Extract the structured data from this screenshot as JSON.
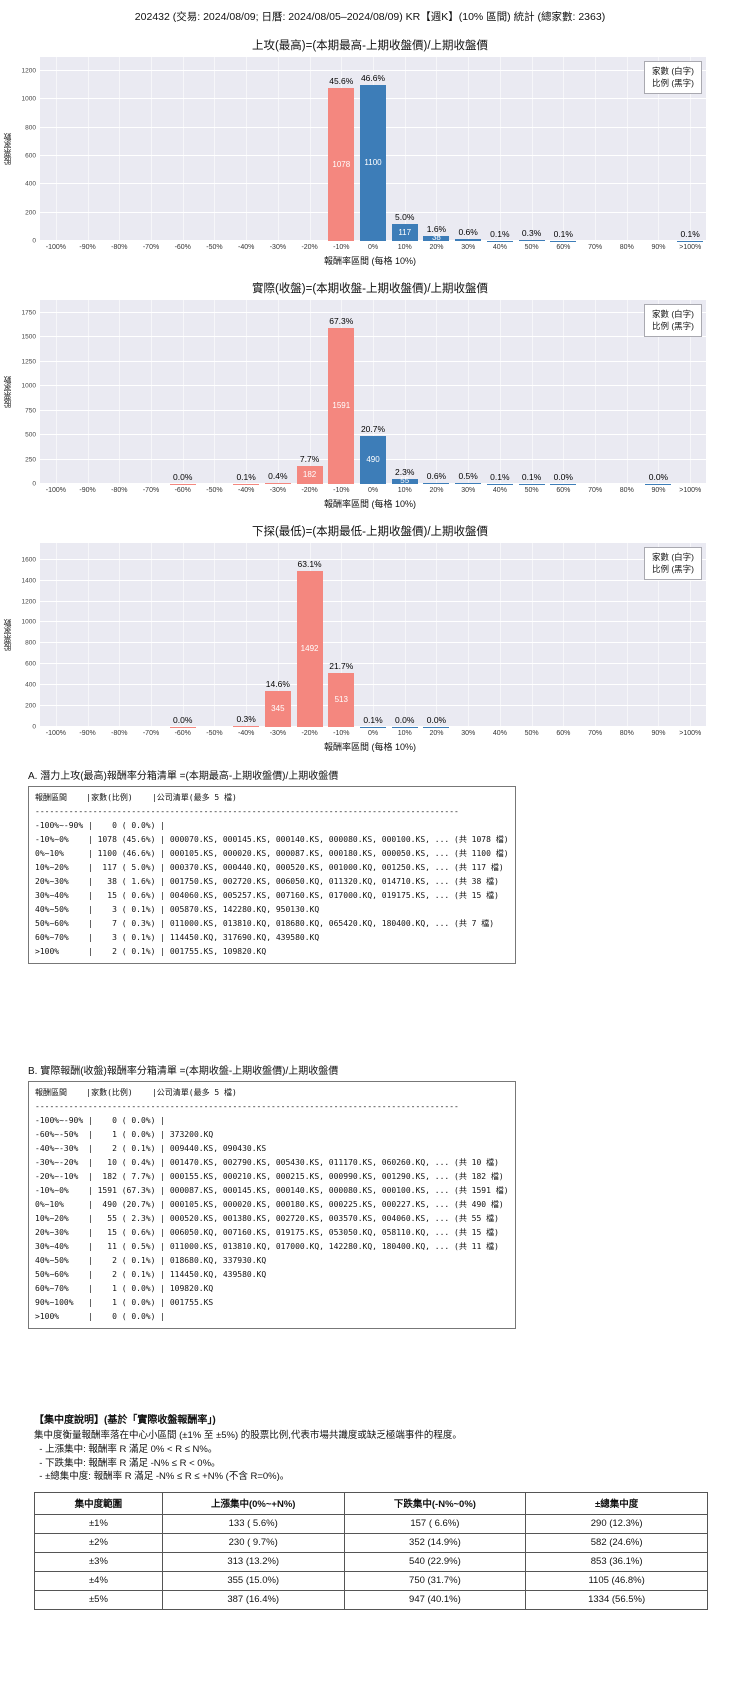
{
  "page_title": "202432 (交易: 2024/08/09; 日曆: 2024/08/05–2024/08/09) KR【週K】(10% 區間) 統計 (總家數: 2363)",
  "colors": {
    "up": "#3d7db8",
    "down": "#f4877f",
    "plot_bg": "#eaeaf2"
  },
  "legend": {
    "line1": "家數 (白字)",
    "line2": "比例 (黑字)"
  },
  "x_axis_label": "報酬率區間 (每格 10%)",
  "y_axis_label": "股票家數",
  "categories": [
    "-100%",
    "-90%",
    "-80%",
    "-70%",
    "-60%",
    "-50%",
    "-40%",
    "-30%",
    "-20%",
    "-10%",
    "0%",
    "10%",
    "20%",
    "30%",
    "40%",
    "50%",
    "60%",
    "70%",
    "80%",
    "90%",
    ">100%"
  ],
  "chart_data": [
    {
      "type": "bar",
      "title": "上攻(最高)=(本期最高-上期收盤價)/上期收盤價",
      "xlabel": "報酬率區間 (每格 10%)",
      "ylabel": "股票家數",
      "ylim": [
        0,
        1300
      ],
      "yticks": [
        0,
        200,
        400,
        600,
        800,
        1000,
        1200
      ],
      "bars": [
        {
          "cat": "-10%",
          "count": 1078,
          "pct": "45.6%"
        },
        {
          "cat": "0%",
          "count": 1100,
          "pct": "46.6%"
        },
        {
          "cat": "10%",
          "count": 117,
          "pct": "5.0%"
        },
        {
          "cat": "20%",
          "count": 38,
          "pct": "1.6%"
        },
        {
          "cat": "30%",
          "count": 15,
          "pct": "0.6%"
        },
        {
          "cat": "40%",
          "count": 3,
          "pct": "0.1%"
        },
        {
          "cat": "50%",
          "count": 7,
          "pct": "0.3%"
        },
        {
          "cat": "60%",
          "count": 3,
          "pct": "0.1%"
        },
        {
          "cat": ">100%",
          "count": 2,
          "pct": "0.1%"
        }
      ]
    },
    {
      "type": "bar",
      "title": "實際(收盤)=(本期收盤-上期收盤價)/上期收盤價",
      "xlabel": "報酬率區間 (每格 10%)",
      "ylabel": "股票家數",
      "ylim": [
        0,
        1880
      ],
      "yticks": [
        0,
        250,
        500,
        750,
        1000,
        1250,
        1500,
        1750
      ],
      "bars": [
        {
          "cat": "-60%",
          "count": 1,
          "pct": "0.0%"
        },
        {
          "cat": "-40%",
          "count": 2,
          "pct": "0.1%"
        },
        {
          "cat": "-30%",
          "count": 10,
          "pct": "0.4%"
        },
        {
          "cat": "-20%",
          "count": 182,
          "pct": "7.7%"
        },
        {
          "cat": "-10%",
          "count": 1591,
          "pct": "67.3%"
        },
        {
          "cat": "0%",
          "count": 490,
          "pct": "20.7%"
        },
        {
          "cat": "10%",
          "count": 55,
          "pct": "2.3%"
        },
        {
          "cat": "20%",
          "count": 15,
          "pct": "0.6%"
        },
        {
          "cat": "30%",
          "count": 11,
          "pct": "0.5%"
        },
        {
          "cat": "40%",
          "count": 2,
          "pct": "0.1%"
        },
        {
          "cat": "50%",
          "count": 2,
          "pct": "0.1%"
        },
        {
          "cat": "60%",
          "count": 1,
          "pct": "0.0%"
        },
        {
          "cat": "90%",
          "count": 1,
          "pct": "0.0%"
        }
      ]
    },
    {
      "type": "bar",
      "title": "下探(最低)=(本期最低-上期收盤價)/上期收盤價",
      "xlabel": "報酬率區間 (每格 10%)",
      "ylabel": "股票家數",
      "ylim": [
        0,
        1760
      ],
      "yticks": [
        0,
        200,
        400,
        600,
        800,
        1000,
        1200,
        1400,
        1600
      ],
      "bars": [
        {
          "cat": "-60%",
          "count": 1,
          "pct": "0.0%"
        },
        {
          "cat": "-40%",
          "count": 7,
          "pct": "0.3%"
        },
        {
          "cat": "-30%",
          "count": 345,
          "pct": "14.6%"
        },
        {
          "cat": "-20%",
          "count": 1492,
          "pct": "63.1%"
        },
        {
          "cat": "-10%",
          "count": 513,
          "pct": "21.7%"
        },
        {
          "cat": "0%",
          "count": 3,
          "pct": "0.1%"
        },
        {
          "cat": "10%",
          "count": 1,
          "pct": "0.0%"
        },
        {
          "cat": "20%",
          "count": 1,
          "pct": "0.0%"
        }
      ]
    }
  ],
  "section_a": {
    "heading": "A. 潛力上攻(最高)報酬率分箱清單 =(本期最高-上期收盤價)/上期收盤價",
    "lines": [
      "報酬區間    |家數(比例)    |公司清單(最多 5 檔)",
      "----------------------------------------------------------------------------------------",
      "-100%~-90% |    0 ( 0.0%) |",
      "-10%~0%    | 1078 (45.6%) | 000070.KS, 000145.KS, 000140.KS, 000080.KS, 000100.KS, ... (共 1078 檔)",
      "0%~10%     | 1100 (46.6%) | 000105.KS, 000020.KS, 000087.KS, 000180.KS, 000050.KS, ... (共 1100 檔)",
      "10%~20%    |  117 ( 5.0%) | 000370.KS, 000440.KQ, 000520.KS, 001000.KQ, 001250.KS, ... (共 117 檔)",
      "20%~30%    |   38 ( 1.6%) | 001750.KS, 002720.KS, 006050.KQ, 011320.KQ, 014710.KS, ... (共 38 檔)",
      "30%~40%    |   15 ( 0.6%) | 004060.KS, 005257.KS, 007160.KS, 017000.KQ, 019175.KS, ... (共 15 檔)",
      "40%~50%    |    3 ( 0.1%) | 005870.KS, 142280.KQ, 950130.KQ",
      "50%~60%    |    7 ( 0.3%) | 011000.KS, 013810.KQ, 018680.KQ, 065420.KQ, 180400.KQ, ... (共 7 檔)",
      "60%~70%    |    3 ( 0.1%) | 114450.KQ, 317690.KQ, 439580.KQ",
      ">100%      |    2 ( 0.1%) | 001755.KS, 109820.KQ"
    ]
  },
  "section_b": {
    "heading": "B. 實際報酬(收盤)報酬率分箱清單 =(本期收盤-上期收盤價)/上期收盤價",
    "lines": [
      "報酬區間    |家數(比例)    |公司清單(最多 5 檔)",
      "----------------------------------------------------------------------------------------",
      "-100%~-90% |    0 ( 0.0%) |",
      "-60%~-50%  |    1 ( 0.0%) | 373200.KQ",
      "-40%~-30%  |    2 ( 0.1%) | 009440.KS, 090430.KS",
      "-30%~-20%  |   10 ( 0.4%) | 001470.KS, 002790.KS, 005430.KS, 011170.KS, 060260.KQ, ... (共 10 檔)",
      "-20%~-10%  |  182 ( 7.7%) | 000155.KS, 000210.KS, 000215.KS, 000990.KS, 001290.KS, ... (共 182 檔)",
      "-10%~0%    | 1591 (67.3%) | 000087.KS, 000145.KS, 000140.KS, 000080.KS, 000100.KS, ... (共 1591 檔)",
      "0%~10%     |  490 (20.7%) | 000105.KS, 000020.KS, 000180.KS, 000225.KS, 000227.KS, ... (共 490 檔)",
      "10%~20%    |   55 ( 2.3%) | 000520.KS, 001380.KS, 002720.KS, 003570.KS, 004060.KS, ... (共 55 檔)",
      "20%~30%    |   15 ( 0.6%) | 006050.KQ, 007160.KS, 019175.KS, 053050.KQ, 058110.KQ, ... (共 15 檔)",
      "30%~40%    |   11 ( 0.5%) | 011000.KS, 013810.KQ, 017000.KQ, 142280.KQ, 180400.KQ, ... (共 11 檔)",
      "40%~50%    |    2 ( 0.1%) | 018680.KQ, 337930.KQ",
      "50%~60%    |    2 ( 0.1%) | 114450.KQ, 439580.KQ",
      "60%~70%    |    1 ( 0.0%) | 109820.KQ",
      "90%~100%   |    1 ( 0.0%) | 001755.KS",
      ">100%      |    0 ( 0.0%) |"
    ]
  },
  "concentration": {
    "heading": "【集中度說明】(基於「實際收盤報酬率」)",
    "desc": "集中度衡量報酬率落在中心小區間 (±1% 至 ±5%) 的股票比例,代表市場共識度或缺乏極端事件的程度。",
    "bullets": [
      "  - 上漲集中: 報酬率 R 滿足 0% < R ≤ N%。",
      "  - 下跌集中: 報酬率 R 滿足 -N% ≤ R < 0%。",
      "  - ±總集中度: 報酬率 R 滿足 -N% ≤ R ≤ +N% (不含 R=0%)。"
    ],
    "table": {
      "headers": [
        "集中度範圍",
        "上漲集中(0%~+N%)",
        "下跌集中(-N%~0%)",
        "±總集中度"
      ],
      "rows": [
        [
          "±1%",
          "133 ( 5.6%)",
          "157 ( 6.6%)",
          "290 (12.3%)"
        ],
        [
          "±2%",
          "230 ( 9.7%)",
          "352 (14.9%)",
          "582 (24.6%)"
        ],
        [
          "±3%",
          "313 (13.2%)",
          "540 (22.9%)",
          "853 (36.1%)"
        ],
        [
          "±4%",
          "355 (15.0%)",
          "750 (31.7%)",
          "1105 (46.8%)"
        ],
        [
          "±5%",
          "387 (16.4%)",
          "947 (40.1%)",
          "1334 (56.5%)"
        ]
      ]
    }
  }
}
